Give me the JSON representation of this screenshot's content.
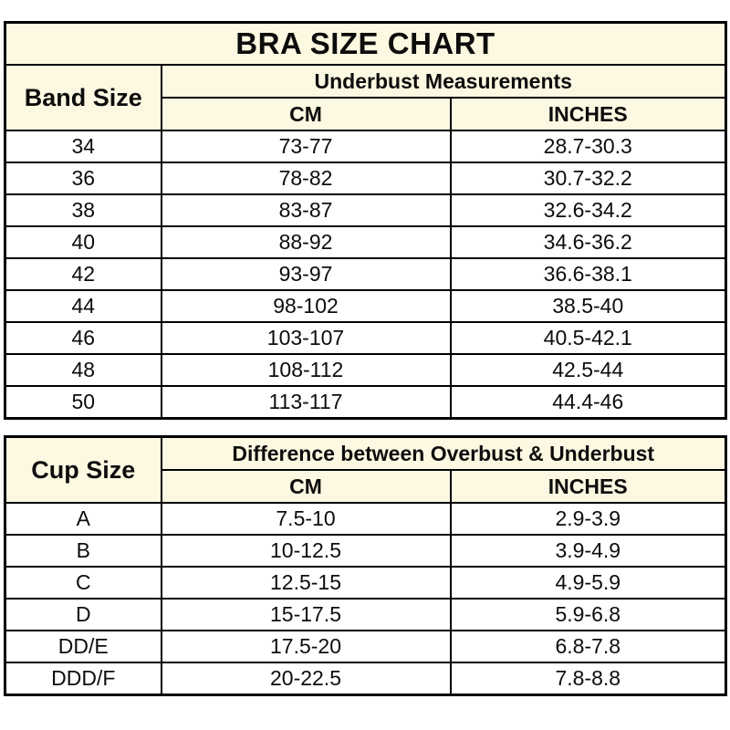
{
  "title": "BRA SIZE CHART",
  "colors": {
    "header_background": "#fdf8e1",
    "border": "#000000",
    "row_background": "#ffffff",
    "text": "#0d0d0d"
  },
  "band_table": {
    "corner_header": "Band Size",
    "group_header": "Underbust Measurements",
    "col_cm": "CM",
    "col_inches": "INCHES",
    "rows": [
      {
        "size": "34",
        "cm": "73-77",
        "inches": "28.7-30.3"
      },
      {
        "size": "36",
        "cm": "78-82",
        "inches": "30.7-32.2"
      },
      {
        "size": "38",
        "cm": "83-87",
        "inches": "32.6-34.2"
      },
      {
        "size": "40",
        "cm": "88-92",
        "inches": "34.6-36.2"
      },
      {
        "size": "42",
        "cm": "93-97",
        "inches": "36.6-38.1"
      },
      {
        "size": "44",
        "cm": "98-102",
        "inches": "38.5-40"
      },
      {
        "size": "46",
        "cm": "103-107",
        "inches": "40.5-42.1"
      },
      {
        "size": "48",
        "cm": "108-112",
        "inches": "42.5-44"
      },
      {
        "size": "50",
        "cm": "113-117",
        "inches": "44.4-46"
      }
    ]
  },
  "cup_table": {
    "corner_header": "Cup Size",
    "group_header": "Difference between Overbust & Underbust",
    "col_cm": "CM",
    "col_inches": "INCHES",
    "rows": [
      {
        "size": "A",
        "cm": "7.5-10",
        "inches": "2.9-3.9"
      },
      {
        "size": "B",
        "cm": "10-12.5",
        "inches": "3.9-4.9"
      },
      {
        "size": "C",
        "cm": "12.5-15",
        "inches": "4.9-5.9"
      },
      {
        "size": "D",
        "cm": "15-17.5",
        "inches": "5.9-6.8"
      },
      {
        "size": "DD/E",
        "cm": "17.5-20",
        "inches": "6.8-7.8"
      },
      {
        "size": "DDD/F",
        "cm": "20-22.5",
        "inches": "7.8-8.8"
      }
    ]
  }
}
